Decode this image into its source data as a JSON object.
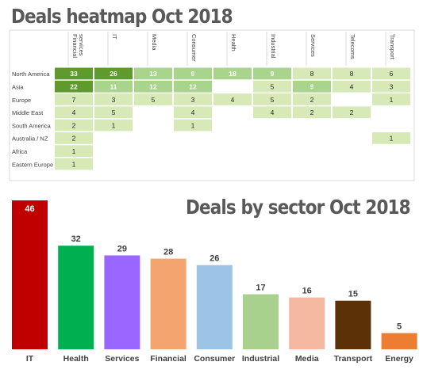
{
  "heatmap_title": "Deals heatmap Oct 2018",
  "bar_title": "Deals by sector Oct 2018",
  "chart_data": [
    {
      "type": "heatmap",
      "title": "Deals heatmap Oct 2018",
      "columns": [
        "Financial services",
        "IT",
        "Media",
        "Consumer",
        "Health",
        "Industrial",
        "Services",
        "Telecoms",
        "Transport"
      ],
      "rows": [
        "North America",
        "Asia",
        "Europe",
        "Middle East",
        "South America",
        "Australia / NZ",
        "Africa",
        "Eastern Europe"
      ],
      "values": [
        [
          33,
          26,
          13,
          9,
          18,
          9,
          8,
          8,
          6
        ],
        [
          22,
          11,
          12,
          12,
          null,
          5,
          9,
          4,
          3
        ],
        [
          7,
          3,
          5,
          3,
          4,
          5,
          2,
          null,
          1
        ],
        [
          4,
          5,
          null,
          4,
          null,
          4,
          2,
          2,
          null
        ],
        [
          2,
          1,
          null,
          1,
          null,
          null,
          null,
          null,
          null
        ],
        [
          2,
          null,
          null,
          null,
          null,
          null,
          null,
          null,
          1
        ],
        [
          1,
          null,
          null,
          null,
          null,
          null,
          null,
          null,
          null
        ],
        [
          1,
          null,
          null,
          null,
          null,
          null,
          null,
          null,
          null
        ]
      ],
      "colors": {
        "low": "#d8e9b8",
        "mid": "#a9d48c",
        "high": "#5e9a2c"
      }
    },
    {
      "type": "bar",
      "title": "Deals by sector Oct 2018",
      "categories": [
        "IT",
        "Health",
        "Services",
        "Financial",
        "Consumer",
        "Industrial",
        "Media",
        "Transport",
        "Energy"
      ],
      "values": [
        46,
        32,
        29,
        28,
        26,
        17,
        16,
        15,
        5
      ],
      "colors": [
        "#c00000",
        "#00b050",
        "#9966ff",
        "#f4a46e",
        "#9dc3e6",
        "#a9d18e",
        "#f4b9a0",
        "#5c3108",
        "#ed7d31"
      ],
      "ylim": [
        0,
        46
      ]
    }
  ]
}
